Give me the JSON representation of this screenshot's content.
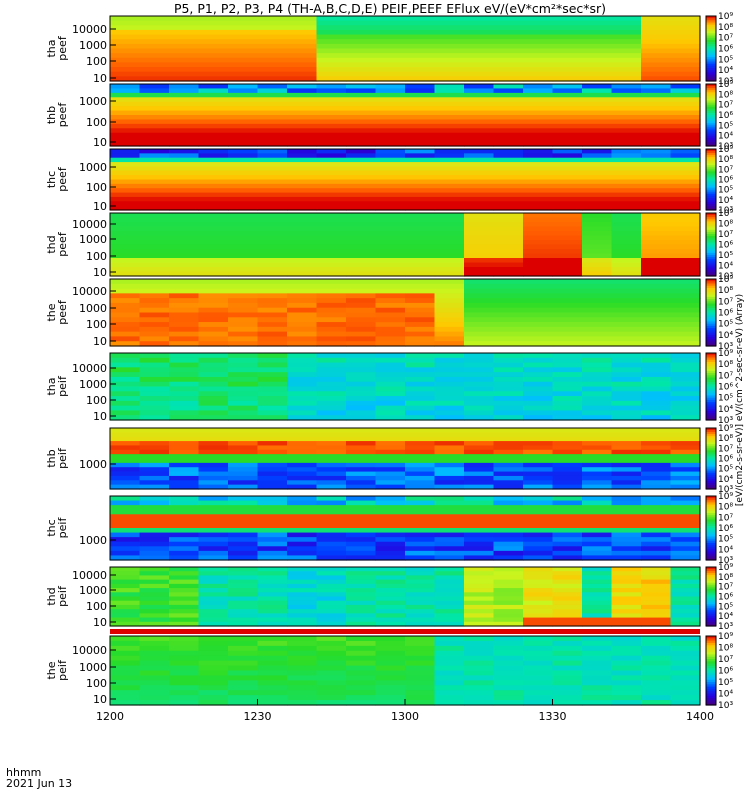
{
  "title": "P5, P1, P2, P3, P4 (TH-A,B,C,D,E) PEIF,PEEF EFlux eV/(eV*cm²*sec*sr)",
  "colorbar_label": "[eV/(cm2-s-sr-eV)] eV/(cm^2-sec-sr-eV) (Array)",
  "time_axis": {
    "label_top": "hhmm",
    "label_bottom": "2021 Jun 13",
    "ticks": [
      "1200",
      "1230",
      "1300",
      "1330",
      "1400"
    ]
  },
  "chart_data": {
    "type": "heatmap",
    "x_range_hhmm": [
      "1200",
      "1400"
    ],
    "y_scale": "log",
    "colorbar_ticks": [
      "10³",
      "10⁴",
      "10⁵",
      "10⁶",
      "10⁷",
      "10⁸",
      "10⁹"
    ],
    "panels": [
      {
        "name": "tha peef",
        "probe": "tha",
        "species": "peef",
        "yticks": [
          "10",
          "100",
          "1000",
          "10000"
        ]
      },
      {
        "name": "thb peef",
        "probe": "thb",
        "species": "peef",
        "yticks": [
          "10",
          "100",
          "1000"
        ]
      },
      {
        "name": "thc peef",
        "probe": "thc",
        "species": "peef",
        "yticks": [
          "10",
          "100",
          "1000"
        ]
      },
      {
        "name": "thd peef",
        "probe": "thd",
        "species": "peef",
        "yticks": [
          "10",
          "100",
          "1000",
          "10000"
        ]
      },
      {
        "name": "the peef",
        "probe": "the",
        "species": "peef",
        "yticks": [
          "10",
          "100",
          "1000",
          "10000"
        ]
      },
      {
        "name": "tha peif",
        "probe": "tha",
        "species": "peif",
        "yticks": [
          "10",
          "100",
          "1000",
          "10000"
        ]
      },
      {
        "name": "thb peif",
        "probe": "thb",
        "species": "peif",
        "yticks": [
          "1000"
        ]
      },
      {
        "name": "thc peif",
        "probe": "thc",
        "species": "peif",
        "yticks": [
          "1000"
        ]
      },
      {
        "name": "thd peif",
        "probe": "thd",
        "species": "peif",
        "yticks": [
          "10",
          "100",
          "1000",
          "10000"
        ]
      },
      {
        "name": "the peif",
        "probe": "the",
        "species": "peif",
        "yticks": [
          "10",
          "100",
          "1000",
          "10000"
        ]
      }
    ]
  }
}
